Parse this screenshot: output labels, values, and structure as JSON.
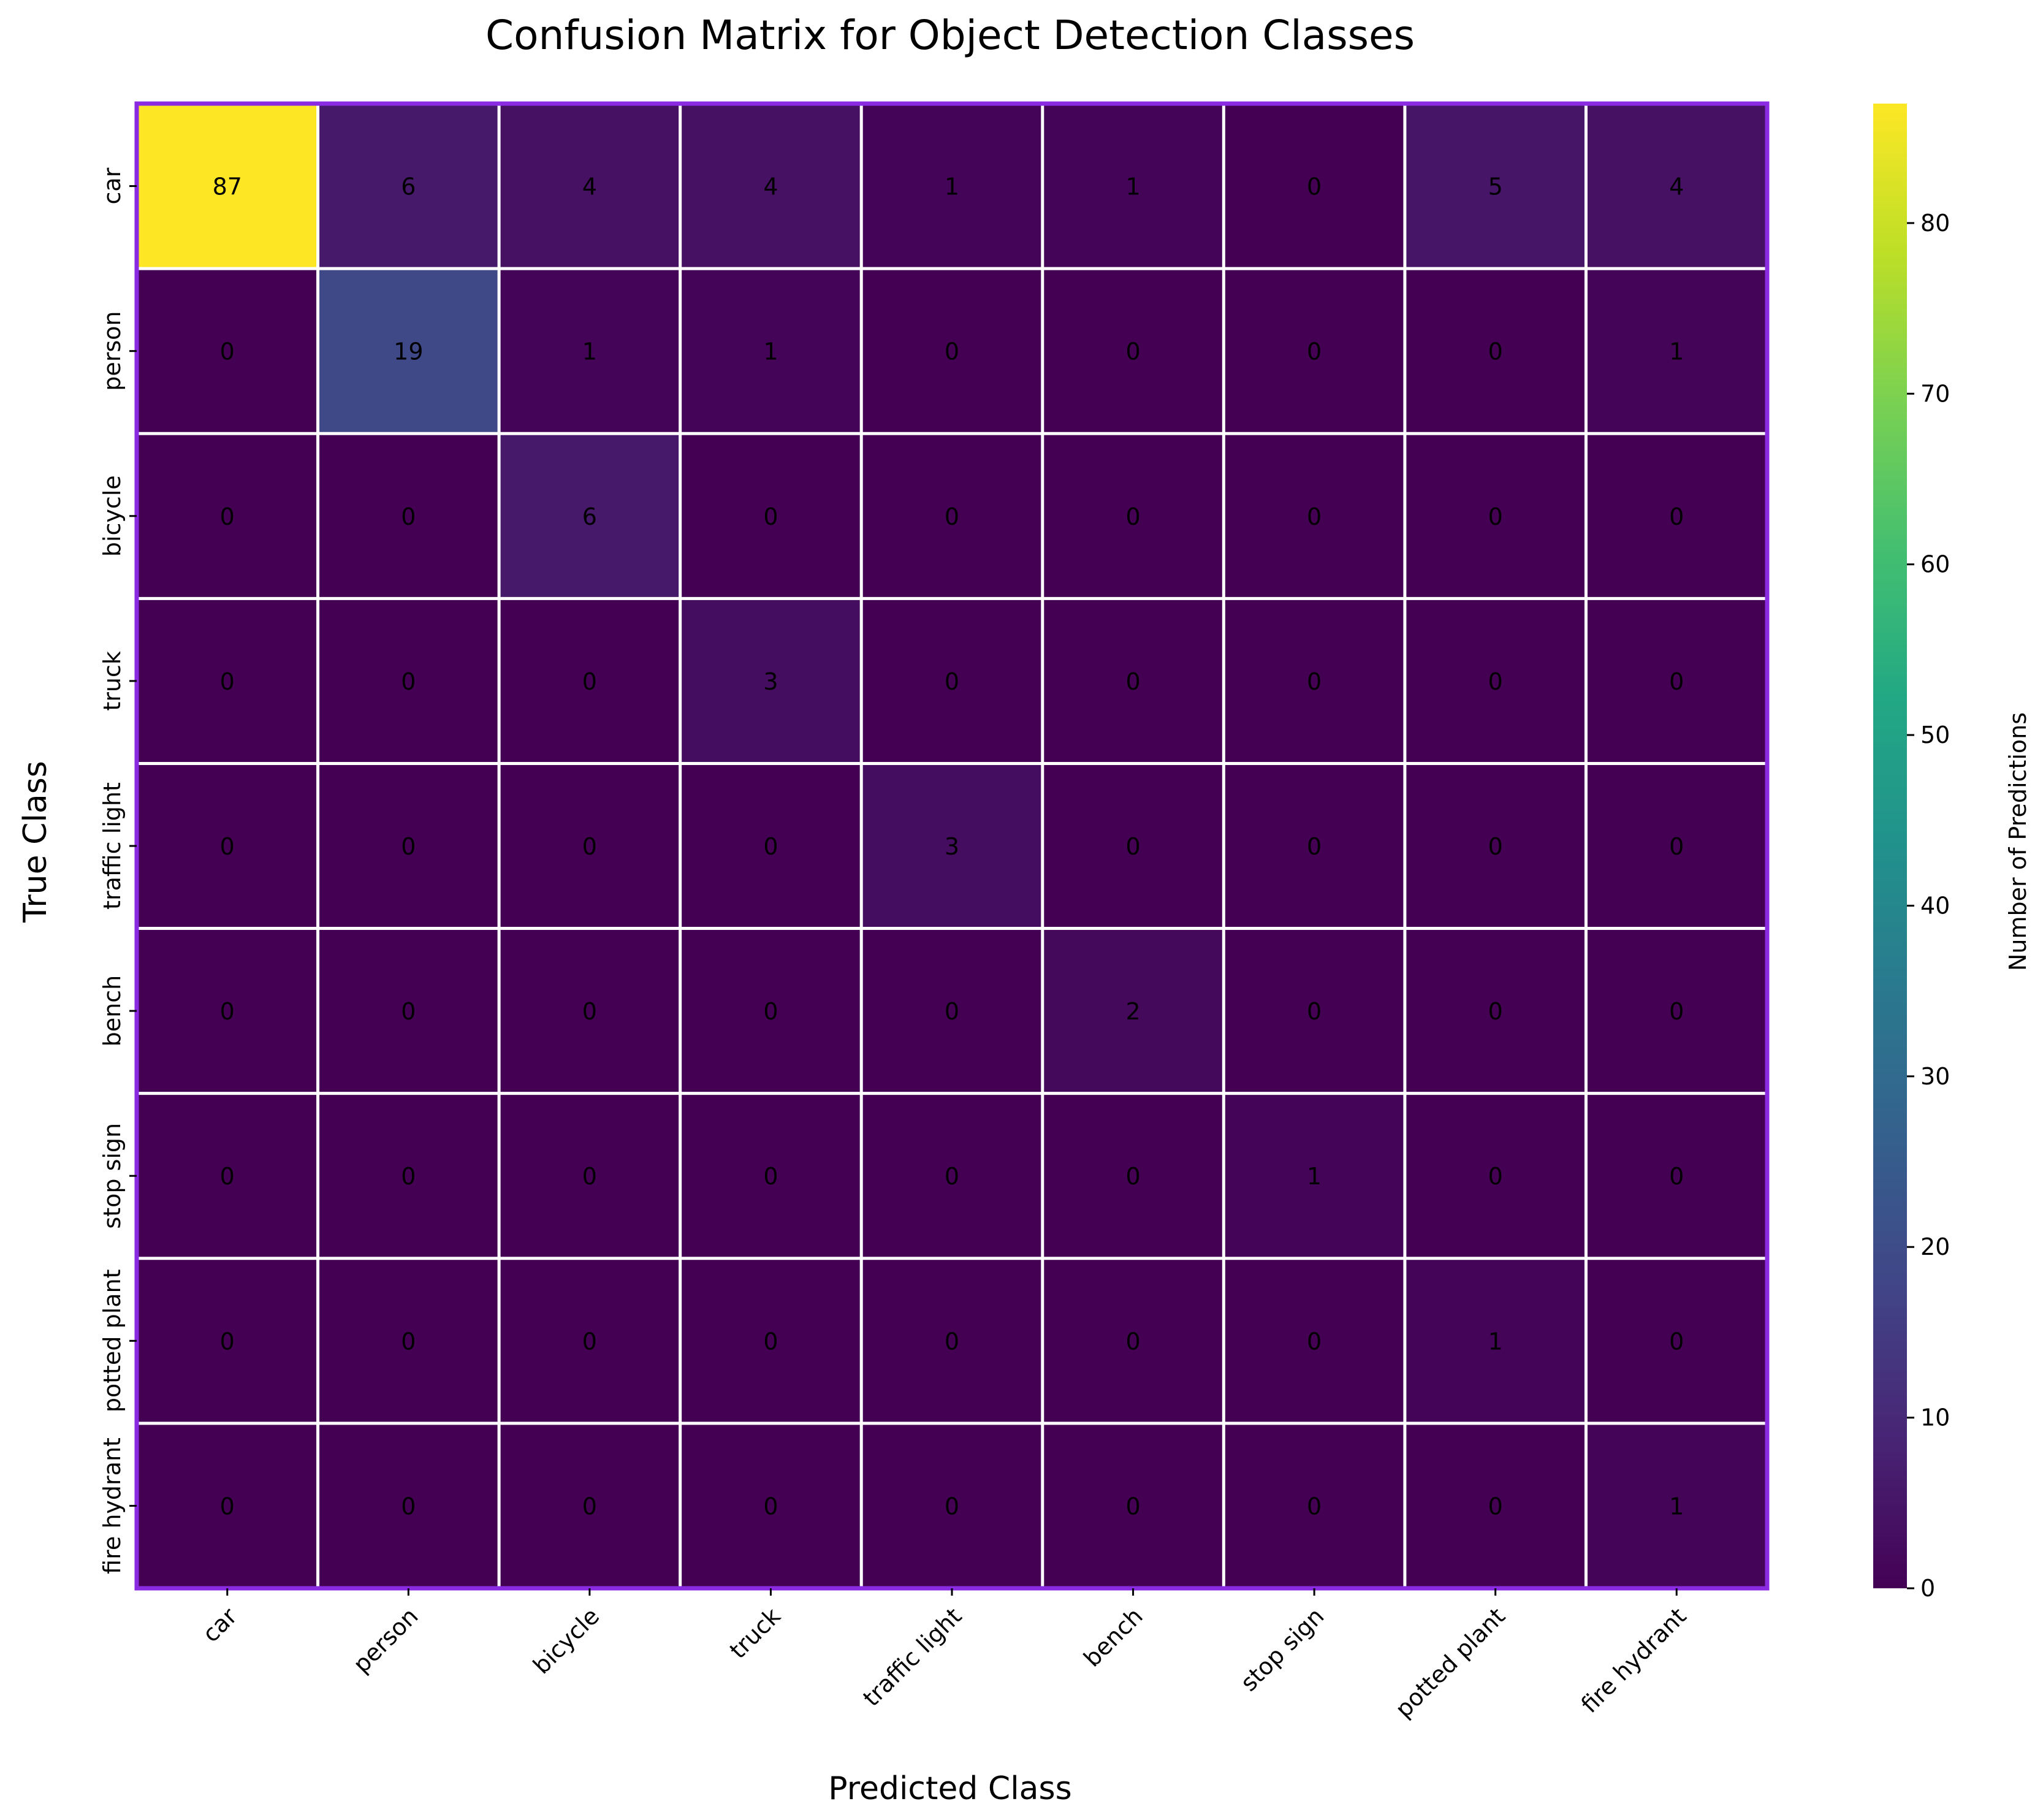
{
  "chart_data": {
    "type": "heatmap",
    "title": "Confusion Matrix for Object Detection Classes",
    "xlabel": "Predicted Class",
    "ylabel": "True Class",
    "colorbar_label": "Number of Predictions",
    "colormap": "viridis",
    "x_categories": [
      "car",
      "person",
      "bicycle",
      "truck",
      "traffic light",
      "bench",
      "stop sign",
      "potted plant",
      "fire hydrant"
    ],
    "y_categories": [
      "car",
      "person",
      "bicycle",
      "truck",
      "traffic light",
      "bench",
      "stop sign",
      "potted plant",
      "fire hydrant"
    ],
    "values": [
      [
        87,
        6,
        4,
        4,
        1,
        1,
        0,
        5,
        4
      ],
      [
        0,
        19,
        1,
        1,
        0,
        0,
        0,
        0,
        1
      ],
      [
        0,
        0,
        6,
        0,
        0,
        0,
        0,
        0,
        0
      ],
      [
        0,
        0,
        0,
        3,
        0,
        0,
        0,
        0,
        0
      ],
      [
        0,
        0,
        0,
        0,
        3,
        0,
        0,
        0,
        0
      ],
      [
        0,
        0,
        0,
        0,
        0,
        2,
        0,
        0,
        0
      ],
      [
        0,
        0,
        0,
        0,
        0,
        0,
        1,
        0,
        0
      ],
      [
        0,
        0,
        0,
        0,
        0,
        0,
        0,
        1,
        0
      ],
      [
        0,
        0,
        0,
        0,
        0,
        0,
        0,
        0,
        1
      ]
    ],
    "color_range": [
      0,
      87
    ],
    "colorbar_ticks": [
      0,
      10,
      20,
      30,
      40,
      50,
      60,
      70,
      80
    ],
    "frame_color": "#8a2be2",
    "gridline_color": "#ffffff",
    "annotation_colors": {
      "light_cell": "#262626",
      "dark_cell": "#ffffff"
    }
  }
}
